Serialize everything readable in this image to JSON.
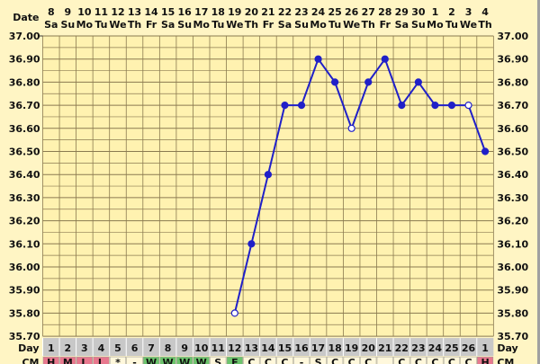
{
  "chart_data": {
    "type": "line",
    "title": "",
    "row_labels": {
      "date": "Date",
      "day": "Day",
      "cm": "CM"
    },
    "dates": [
      "8",
      "9",
      "10",
      "11",
      "12",
      "13",
      "14",
      "15",
      "16",
      "17",
      "18",
      "19",
      "20",
      "21",
      "22",
      "23",
      "24",
      "25",
      "26",
      "27",
      "28",
      "29",
      "30",
      "1",
      "2",
      "3",
      "4"
    ],
    "weekdays": [
      "Sa",
      "Su",
      "Mo",
      "Tu",
      "We",
      "Th",
      "Fr",
      "Sa",
      "Su",
      "Mo",
      "Tu",
      "We",
      "Th",
      "Fr",
      "Sa",
      "Su",
      "Mo",
      "Tu",
      "We",
      "Th",
      "Fr",
      "Sa",
      "Su",
      "Mo",
      "Tu",
      "We",
      "Th"
    ],
    "days": [
      "1",
      "2",
      "3",
      "4",
      "5",
      "6",
      "7",
      "8",
      "9",
      "10",
      "11",
      "12",
      "13",
      "14",
      "15",
      "16",
      "17",
      "18",
      "19",
      "20",
      "21",
      "22",
      "23",
      "24",
      "25",
      "26",
      "1"
    ],
    "cm": [
      "H",
      "M",
      "L",
      "L",
      "*",
      "-",
      "W",
      "W",
      "W",
      "W",
      "S",
      "E",
      "C",
      "C",
      "C",
      "-",
      "S",
      "C",
      "C",
      "C",
      "",
      "C",
      "C",
      "C",
      "C",
      "C",
      "H"
    ],
    "cm_colors": {
      "H": "#e8788e",
      "M": "#e8788e",
      "L": "#e8788e",
      "W": "#6cc46c",
      "E": "#6cc46c"
    },
    "series": [
      {
        "values": [
          null,
          null,
          null,
          null,
          null,
          null,
          null,
          null,
          null,
          null,
          null,
          35.8,
          36.1,
          36.4,
          36.7,
          36.7,
          36.9,
          36.8,
          36.6,
          36.8,
          36.9,
          36.7,
          36.8,
          36.7,
          36.7,
          36.7,
          36.5
        ],
        "open_markers": [
          12,
          19,
          26
        ]
      }
    ],
    "ylim": [
      35.7,
      37.0
    ],
    "yticks": [
      "37.00",
      "36.90",
      "36.80",
      "36.70",
      "36.60",
      "36.50",
      "36.40",
      "36.30",
      "36.20",
      "36.10",
      "36.00",
      "35.90",
      "35.80",
      "35.70"
    ],
    "grid": true,
    "colors": {
      "line": "#2020c8",
      "grid": "#8a7a50",
      "plot_bg": "#fff2b0",
      "day_row": "#c8c8c8"
    }
  }
}
